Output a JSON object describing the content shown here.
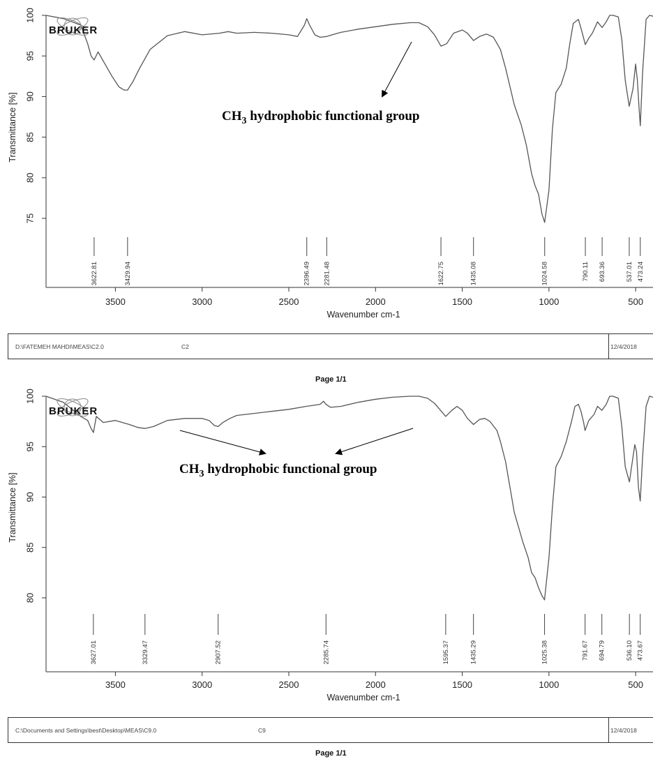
{
  "chart_data": [
    {
      "type": "line",
      "logo": "BRUKER",
      "xlabel": "Wavenumber cm-1",
      "ylabel": "Transmittance [%]",
      "xlim": [
        3900,
        400
      ],
      "ylim": [
        70,
        100
      ],
      "xticks": [
        3500,
        3000,
        2500,
        2000,
        1500,
        1000,
        500
      ],
      "yticks": [
        75,
        80,
        85,
        90,
        95,
        100
      ],
      "series": [
        {
          "x": [
            3900,
            3800,
            3700,
            3660,
            3640,
            3622.81,
            3600,
            3560,
            3520,
            3480,
            3450,
            3429.94,
            3400,
            3360,
            3300,
            3200,
            3100,
            3000,
            2900,
            2850,
            2800,
            2700,
            2600,
            2500,
            2450,
            2410,
            2396.49,
            2380,
            2350,
            2320,
            2281.48,
            2250,
            2200,
            2100,
            2000,
            1900,
            1800,
            1750,
            1700,
            1660,
            1622.75,
            1590,
            1550,
            1500,
            1470,
            1435.08,
            1400,
            1360,
            1320,
            1280,
            1250,
            1200,
            1160,
            1130,
            1100,
            1080,
            1060,
            1040,
            1024.58,
            1000,
            980,
            960,
            930,
            900,
            880,
            860,
            830,
            810,
            790.11,
            770,
            750,
            720,
            693.36,
            670,
            650,
            630,
            600,
            580,
            560,
            537.01,
            515,
            500,
            490,
            480,
            473.24,
            460,
            440,
            420,
            400
          ],
          "y": [
            100,
            99.6,
            98.8,
            96.5,
            95.0,
            94.5,
            95.5,
            94.0,
            92.5,
            91.2,
            90.8,
            90.8,
            91.8,
            93.5,
            95.8,
            97.5,
            98.0,
            97.6,
            97.8,
            98.0,
            97.8,
            97.9,
            97.8,
            97.6,
            97.4,
            98.8,
            99.6,
            98.8,
            97.6,
            97.3,
            97.4,
            97.6,
            97.9,
            98.3,
            98.6,
            98.9,
            99.1,
            99.1,
            98.6,
            97.6,
            96.2,
            96.5,
            97.8,
            98.2,
            97.8,
            96.9,
            97.4,
            97.7,
            97.3,
            95.8,
            93.5,
            89.0,
            86.5,
            84.0,
            80.5,
            79.0,
            78.0,
            75.5,
            74.5,
            78.5,
            86.0,
            90.5,
            91.5,
            93.5,
            96.5,
            99.0,
            99.5,
            98.0,
            96.4,
            97.2,
            97.8,
            99.2,
            98.5,
            99.2,
            100,
            100,
            99.8,
            97.0,
            92.0,
            88.8,
            91.0,
            94.0,
            92.0,
            88.5,
            86.4,
            93.0,
            99.5,
            100,
            99.9
          ]
        }
      ],
      "peaks": [
        3622.81,
        3429.94,
        2396.49,
        2281.48,
        1622.75,
        1435.08,
        1024.58,
        790.11,
        693.36,
        537.01,
        473.24
      ],
      "peak_labels": [
        "3622.81",
        "3429.94",
        "2396.49",
        "2281.48",
        "1622.75",
        "1435.08",
        "1024.58",
        "790.11",
        "693.36",
        "537.01",
        "473.24"
      ],
      "annotation": {
        "text": "CH",
        "sub": "3",
        "rest": " hydrophobic functional group"
      },
      "footer": {
        "path": "D:\\FATEMEH MAHDI\\MEAS\\C2.0",
        "sample": "C2",
        "date": "12/4/2018",
        "page": "Page 1/1"
      }
    },
    {
      "type": "line",
      "logo": "BRUKER",
      "xlabel": "Wavenumber cm-1",
      "ylabel": "Transmittance [%]",
      "xlim": [
        3900,
        400
      ],
      "ylim": [
        75,
        100
      ],
      "xticks": [
        3500,
        3000,
        2500,
        2000,
        1500,
        1000,
        500
      ],
      "yticks": [
        80,
        85,
        90,
        95,
        100
      ],
      "series": [
        {
          "x": [
            3900,
            3800,
            3700,
            3660,
            3640,
            3627.01,
            3610,
            3570,
            3500,
            3420,
            3370,
            3329.47,
            3280,
            3200,
            3100,
            3000,
            2960,
            2930,
            2907.52,
            2880,
            2840,
            2800,
            2700,
            2600,
            2500,
            2400,
            2320,
            2300,
            2285.74,
            2260,
            2200,
            2100,
            2000,
            1900,
            1800,
            1750,
            1700,
            1660,
            1620,
            1595.37,
            1560,
            1530,
            1500,
            1470,
            1435.29,
            1400,
            1370,
            1340,
            1300,
            1280,
            1250,
            1200,
            1150,
            1120,
            1100,
            1080,
            1060,
            1040,
            1025.38,
            1000,
            980,
            960,
            930,
            900,
            870,
            850,
            830,
            815,
            800,
            791.67,
            770,
            740,
            720,
            694.79,
            670,
            650,
            630,
            600,
            580,
            560,
            536.1,
            515,
            505,
            495,
            484,
            473.67,
            460,
            440,
            420,
            400
          ],
          "y": [
            100,
            99.4,
            98.0,
            97.6,
            96.8,
            96.4,
            98.0,
            97.4,
            97.6,
            97.2,
            96.9,
            96.8,
            97.0,
            97.6,
            97.8,
            97.8,
            97.6,
            97.1,
            97.0,
            97.4,
            97.8,
            98.1,
            98.3,
            98.5,
            98.7,
            99.0,
            99.2,
            99.5,
            99.2,
            98.9,
            99.0,
            99.4,
            99.7,
            99.9,
            100,
            100,
            99.8,
            99.3,
            98.5,
            98.0,
            98.6,
            99.0,
            98.6,
            97.8,
            97.2,
            97.7,
            97.8,
            97.5,
            96.6,
            95.5,
            93.5,
            88.5,
            85.5,
            84.0,
            82.5,
            82.0,
            81.0,
            80.2,
            79.8,
            84.0,
            89.0,
            93.0,
            94.0,
            95.5,
            97.5,
            99.0,
            99.2,
            98.5,
            97.4,
            96.6,
            97.6,
            98.2,
            99.0,
            98.6,
            99.2,
            100,
            100,
            99.8,
            97.0,
            93.0,
            91.5,
            94.0,
            95.2,
            94.5,
            91.0,
            89.6,
            94.0,
            99.0,
            100,
            99.9
          ]
        }
      ],
      "peaks": [
        3627.01,
        3329.47,
        2907.52,
        2285.74,
        1595.37,
        1435.29,
        1025.38,
        791.67,
        694.79,
        536.1,
        473.67
      ],
      "peak_labels": [
        "3627.01",
        "3329.47",
        "2907.52",
        "2285.74",
        "1595.37",
        "1435.29",
        "1025.38",
        "791.67",
        "694.79",
        "536.10",
        "473.67"
      ],
      "annotation": {
        "text": "CH",
        "sub": "3",
        "rest": " hydrophobic functional group"
      },
      "footer": {
        "path": "C:\\Documents and Settings\\best\\Desktop\\MEAS\\C9.0",
        "sample": "C9",
        "date": "12/4/2018",
        "page": "Page 1/1"
      }
    }
  ],
  "colors": {
    "trace": "#555555",
    "axis": "#333333",
    "arrow": "#000000"
  }
}
